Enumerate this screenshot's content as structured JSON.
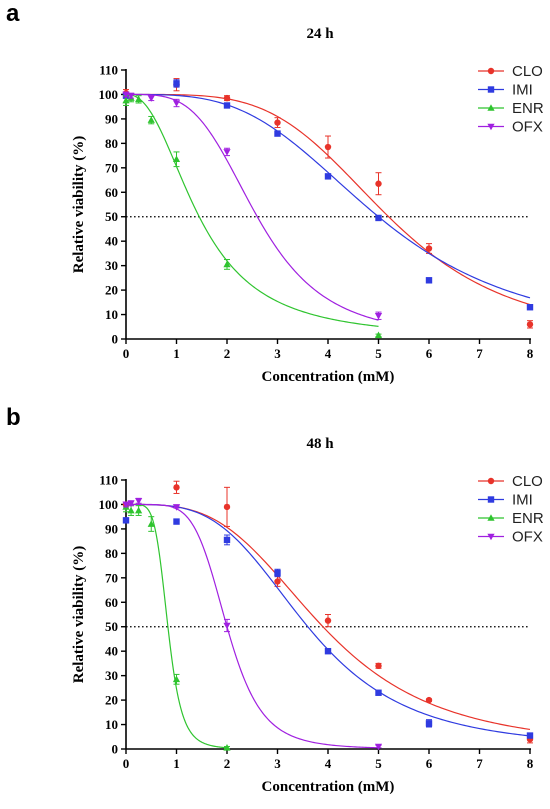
{
  "chart_data": [
    {
      "panel_label": "a",
      "type": "scatter",
      "title": "24 h",
      "xlabel": "Concentration (mM)",
      "ylabel": "Relative viability (%)",
      "xlim": [
        0,
        8
      ],
      "ylim": [
        0,
        110
      ],
      "xticks": [
        "0",
        "1",
        "2",
        "3",
        "4",
        "5",
        "6",
        "7",
        "8"
      ],
      "yticks": [
        "0",
        "10",
        "20",
        "30",
        "40",
        "50",
        "60",
        "70",
        "80",
        "90",
        "100",
        "110"
      ],
      "reference_line": {
        "y": 50,
        "style": "dotted"
      },
      "grid": false,
      "legend_position": "top-right",
      "series": [
        {
          "name": "CLO",
          "color": "#e8332a",
          "marker": "circle",
          "points": [
            {
              "x": 0,
              "y": 100.5,
              "err": 1.5
            },
            {
              "x": 1,
              "y": 104,
              "err": 2.5
            },
            {
              "x": 2,
              "y": 98.5,
              "err": 1
            },
            {
              "x": 3,
              "y": 88.5,
              "err": 2
            },
            {
              "x": 4,
              "y": 78.5,
              "err": 4.5
            },
            {
              "x": 5,
              "y": 63.5,
              "err": 4.5
            },
            {
              "x": 6,
              "y": 37,
              "err": 2
            },
            {
              "x": 8,
              "y": 6,
              "err": 1.5
            }
          ],
          "fit": {
            "top": 100,
            "bottom": 0,
            "ic50": 5.2,
            "hill": 4.2
          }
        },
        {
          "name": "IMI",
          "color": "#2f3be0",
          "marker": "square",
          "points": [
            {
              "x": 0,
              "y": 99.5,
              "err": 1
            },
            {
              "x": 1,
              "y": 104.5,
              "err": 1.5
            },
            {
              "x": 2,
              "y": 95.5,
              "err": 1
            },
            {
              "x": 3,
              "y": 84,
              "err": 1
            },
            {
              "x": 4,
              "y": 66.5,
              "err": 1
            },
            {
              "x": 5,
              "y": 49.5,
              "err": 1
            },
            {
              "x": 6,
              "y": 24,
              "err": 1
            },
            {
              "x": 8,
              "y": 13,
              "err": 1
            }
          ],
          "fit": {
            "top": 100,
            "bottom": 0,
            "ic50": 5.0,
            "hill": 3.4
          }
        },
        {
          "name": "ENR",
          "color": "#2fc42f",
          "marker": "triangle-up",
          "points": [
            {
              "x": 0,
              "y": 97.5,
              "err": 2
            },
            {
              "x": 0.1,
              "y": 98.5,
              "err": 1.5
            },
            {
              "x": 0.25,
              "y": 98,
              "err": 1.5
            },
            {
              "x": 0.5,
              "y": 89.5,
              "err": 1.5
            },
            {
              "x": 1,
              "y": 73.5,
              "err": 3
            },
            {
              "x": 2,
              "y": 30.5,
              "err": 2
            },
            {
              "x": 5,
              "y": 1.5,
              "err": 0.5
            }
          ],
          "fit": {
            "top": 100,
            "bottom": 0,
            "ic50": 1.45,
            "hill": 2.35
          }
        },
        {
          "name": "OFX",
          "color": "#a020e0",
          "marker": "triangle-down",
          "points": [
            {
              "x": 0,
              "y": 100,
              "err": 1
            },
            {
              "x": 0.1,
              "y": 99.5,
              "err": 1
            },
            {
              "x": 0.5,
              "y": 98.5,
              "err": 1
            },
            {
              "x": 1,
              "y": 96.5,
              "err": 1.5
            },
            {
              "x": 2,
              "y": 76.5,
              "err": 1.5
            },
            {
              "x": 5,
              "y": 9.5,
              "err": 1.5
            }
          ],
          "fit": {
            "top": 100,
            "bottom": 0,
            "ic50": 2.6,
            "hill": 3.8
          }
        }
      ]
    },
    {
      "panel_label": "b",
      "type": "scatter",
      "title": "48 h",
      "xlabel": "Concentration (mM)",
      "ylabel": "Relative viability (%)",
      "xlim": [
        0,
        8
      ],
      "ylim": [
        0,
        110
      ],
      "xticks": [
        "0",
        "1",
        "2",
        "3",
        "4",
        "5",
        "6",
        "7",
        "8"
      ],
      "yticks": [
        "0",
        "10",
        "20",
        "30",
        "40",
        "50",
        "60",
        "70",
        "80",
        "90",
        "100",
        "110"
      ],
      "reference_line": {
        "y": 50,
        "style": "dotted"
      },
      "grid": false,
      "legend_position": "top-right",
      "series": [
        {
          "name": "CLO",
          "color": "#e8332a",
          "marker": "circle",
          "points": [
            {
              "x": 0,
              "y": 100,
              "err": 1
            },
            {
              "x": 1,
              "y": 107,
              "err": 2.5
            },
            {
              "x": 2,
              "y": 99,
              "err": 8
            },
            {
              "x": 3,
              "y": 68.5,
              "err": 2
            },
            {
              "x": 4,
              "y": 52.5,
              "err": 2.5
            },
            {
              "x": 5,
              "y": 34,
              "err": 1
            },
            {
              "x": 6,
              "y": 20,
              "err": 0.5
            },
            {
              "x": 8,
              "y": 4,
              "err": 1.5
            }
          ],
          "fit": {
            "top": 100,
            "bottom": 0,
            "ic50": 3.9,
            "hill": 3.4
          }
        },
        {
          "name": "IMI",
          "color": "#2f3be0",
          "marker": "square",
          "points": [
            {
              "x": 0,
              "y": 93.5,
              "err": 1
            },
            {
              "x": 1,
              "y": 93,
              "err": 1
            },
            {
              "x": 2,
              "y": 85.5,
              "err": 2
            },
            {
              "x": 3,
              "y": 72,
              "err": 1.5
            },
            {
              "x": 4,
              "y": 40,
              "err": 1
            },
            {
              "x": 5,
              "y": 23,
              "err": 0.5
            },
            {
              "x": 6,
              "y": 10.5,
              "err": 1.5
            },
            {
              "x": 8,
              "y": 5.5,
              "err": 1
            }
          ],
          "fit": {
            "top": 100,
            "bottom": 0,
            "ic50": 3.6,
            "hill": 3.6
          }
        },
        {
          "name": "ENR",
          "color": "#2fc42f",
          "marker": "triangle-up",
          "points": [
            {
              "x": 0,
              "y": 99,
              "err": 2
            },
            {
              "x": 0.1,
              "y": 97.5,
              "err": 2
            },
            {
              "x": 0.25,
              "y": 97.5,
              "err": 2
            },
            {
              "x": 0.5,
              "y": 92,
              "err": 3
            },
            {
              "x": 1,
              "y": 28.5,
              "err": 2
            },
            {
              "x": 2,
              "y": 0.5,
              "err": 0.5
            }
          ],
          "fit": {
            "top": 100,
            "bottom": 0,
            "ic50": 0.83,
            "hill": 6.0
          }
        },
        {
          "name": "OFX",
          "color": "#a020e0",
          "marker": "triangle-down",
          "points": [
            {
              "x": 0,
              "y": 100,
              "err": 1
            },
            {
              "x": 0.1,
              "y": 100.5,
              "err": 1
            },
            {
              "x": 0.25,
              "y": 101.5,
              "err": 1
            },
            {
              "x": 1,
              "y": 99,
              "err": 0.5
            },
            {
              "x": 2,
              "y": 50.5,
              "err": 2.5
            },
            {
              "x": 5,
              "y": 1,
              "err": 0.5
            }
          ],
          "fit": {
            "top": 100,
            "bottom": 0,
            "ic50": 2.0,
            "hill": 5.8
          }
        }
      ]
    }
  ]
}
